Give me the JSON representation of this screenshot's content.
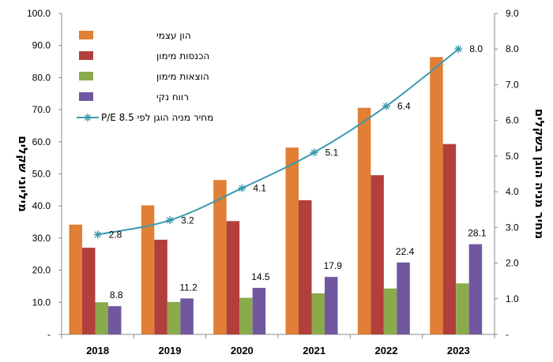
{
  "chart_data": {
    "type": "bar",
    "categories": [
      "2018",
      "2019",
      "2020",
      "2021",
      "2022",
      "2023"
    ],
    "series": [
      {
        "name": "הון עצמי",
        "kind": "bar",
        "color": "#E07F35",
        "values": [
          34.2,
          40.2,
          48.1,
          58.2,
          70.6,
          86.4
        ]
      },
      {
        "name": "הכנסות מימון",
        "kind": "bar",
        "color": "#B33F3C",
        "values": [
          27.0,
          29.5,
          35.3,
          41.8,
          49.6,
          59.3
        ]
      },
      {
        "name": "הוצאות מימון",
        "kind": "bar",
        "color": "#8BAA4B",
        "values": [
          10.0,
          10.1,
          11.4,
          12.8,
          14.3,
          15.9
        ]
      },
      {
        "name": "רווח נקי",
        "kind": "bar",
        "color": "#7057A0",
        "values": [
          8.8,
          11.2,
          14.5,
          17.9,
          22.4,
          28.1
        ],
        "labels": [
          "8.8",
          "11.2",
          "14.5",
          "17.9",
          "22.4",
          "28.1"
        ]
      },
      {
        "name": "P/E 8.5 מחיר מניה הוגן לפי",
        "kind": "line",
        "axis": "right",
        "color": "#3A9AB0",
        "marker": "asterisk",
        "values": [
          2.8,
          3.2,
          4.1,
          5.1,
          6.4,
          8.0
        ],
        "labels": [
          "2.8",
          "3.2",
          "4.1",
          "5.1",
          "6.4",
          "8.0"
        ]
      }
    ],
    "ylabel": "מיליוני שקלים",
    "y2label": "מחיר מניה הוגן בשקלים",
    "ylim": [
      0,
      100
    ],
    "y2lim": [
      0,
      9
    ],
    "yticks": [
      "-",
      "10.0",
      "20.0",
      "30.0",
      "40.0",
      "50.0",
      "60.0",
      "70.0",
      "80.0",
      "90.0",
      "100.0"
    ],
    "y2ticks": [
      "-",
      "1.0",
      "2.0",
      "3.0",
      "4.0",
      "5.0",
      "6.0",
      "7.0",
      "8.0",
      "9.0"
    ],
    "grid": false,
    "legend_position": "top-left"
  }
}
